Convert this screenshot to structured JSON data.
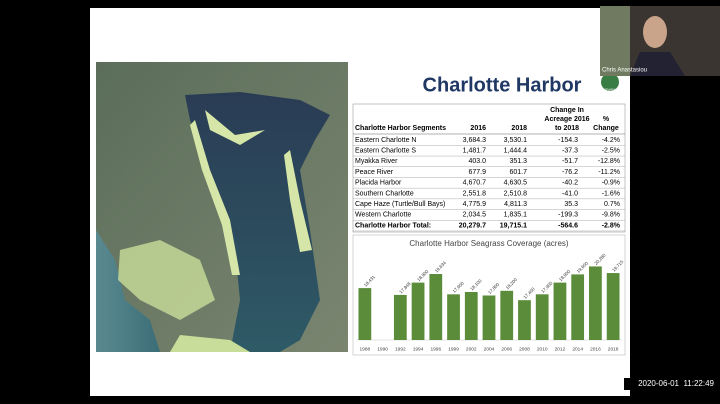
{
  "slide": {
    "title": "Charlotte Harbor",
    "logo": "SWIM",
    "table": {
      "header": {
        "segment": "Charlotte Harbor Segments",
        "y2016": "2016",
        "y2018": "2018",
        "change": [
          "Change In",
          "Acreage 2016",
          "to 2018"
        ],
        "pct": [
          "%",
          "Change"
        ]
      },
      "rows": [
        [
          "Eastern Charlotte N",
          "3,684.3",
          "3,530.1",
          "-154.3",
          "-4.2%"
        ],
        [
          "Eastern Charlotte S",
          "1,481.7",
          "1,444.4",
          "-37.3",
          "-2.5%"
        ],
        [
          "Myakka River",
          "403.0",
          "351.3",
          "-51.7",
          "-12.8%"
        ],
        [
          "Peace River",
          "677.9",
          "601.7",
          "-76.2",
          "-11.2%"
        ],
        [
          "Placida Harbor",
          "4,670.7",
          "4,630.5",
          "-40.2",
          "-0.9%"
        ],
        [
          "Southern Charlotte",
          "2,551.8",
          "2,510.8",
          "-41.0",
          "-1.6%"
        ],
        [
          "Cape Haze (Turtle/Bull Bays)",
          "4,775.9",
          "4,811.3",
          "35.3",
          "0.7%"
        ],
        [
          "Western Charlotte",
          "2,034.5",
          "1,835.1",
          "-199.3",
          "-9.8%"
        ]
      ],
      "total": [
        "Charlotte Harbor Total:",
        "20,279.7",
        "19,715.1",
        "-564.6",
        "-2.8%"
      ]
    }
  },
  "chart_data": {
    "type": "bar",
    "title": "Charlotte Harbor Seagrass Coverage (acres)",
    "categories": [
      "1988",
      "1990",
      "1992",
      "1994",
      "1996",
      "1999",
      "2002",
      "2004",
      "2006",
      "2008",
      "2010",
      "2012",
      "2014",
      "2016",
      "2018"
    ],
    "values": [
      18431,
      null,
      17848,
      18900,
      19634,
      17900,
      18100,
      17800,
      18200,
      17400,
      17900,
      18900,
      19600,
      20280,
      19715
    ],
    "value_labels": [
      "18,431",
      null,
      "17,848",
      "18,900",
      "19,634",
      "17,900",
      "18,100",
      "17,800",
      "18,200",
      "17,400",
      "17,900",
      "18,900",
      "19,600",
      "20,280",
      "19,715"
    ],
    "color": "#5b8c3a",
    "ylim": [
      14000,
      21000
    ],
    "grid": true
  },
  "call": {
    "participant": "Chris Anastasiou",
    "timestamp": "2020-06-01  11:22:49"
  }
}
